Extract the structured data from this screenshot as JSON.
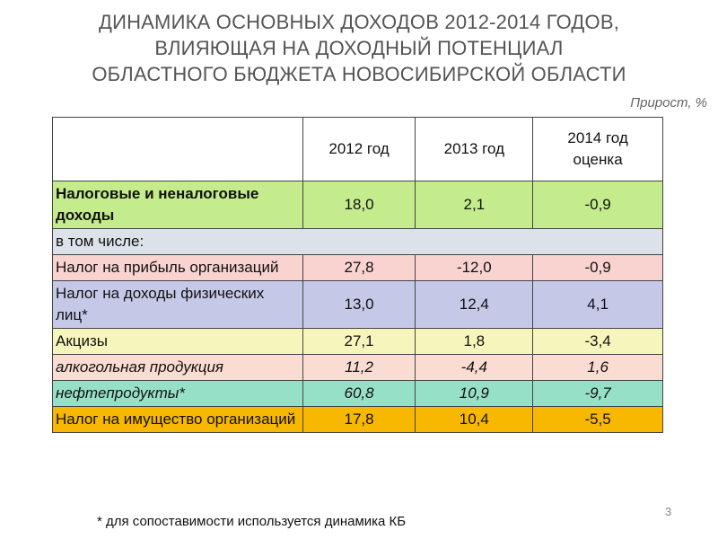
{
  "title": {
    "lines": [
      "ДИНАМИКА ОСНОВНЫХ ДОХОДОВ 2012-2014 ГОДОВ,",
      "ВЛИЯЮЩАЯ НА ДОХОДНЫЙ ПОТЕНЦИАЛ",
      "ОБЛАСТНОГО БЮДЖЕТА НОВОСИБИРСКОЙ ОБЛАСТИ"
    ]
  },
  "unit_note": "Прирост, %",
  "table": {
    "columns": [
      "2012 год",
      "2013 год",
      "2014 год\nоценка"
    ],
    "rows": [
      {
        "label": "Налоговые и неналоговые доходы",
        "values": [
          "18,0",
          "2,1",
          "-0,9"
        ],
        "color": "#c4ec8c",
        "bold_label": true
      },
      {
        "label": "в том числе:",
        "color": "#dce2ea"
      },
      {
        "label": "Налог на прибыль организаций",
        "values": [
          "27,8",
          "-12,0",
          "-0,9"
        ],
        "color": "#f8d3cf"
      },
      {
        "label": "Налог на доходы физических лиц*",
        "values": [
          "13,0",
          "12,4",
          "4,1"
        ],
        "color": "#c6c8e8"
      },
      {
        "label": "Акцизы",
        "values": [
          "27,1",
          "1,8",
          "-3,4"
        ],
        "color": "#f6f6bc"
      },
      {
        "label": "алкогольная продукция",
        "values": [
          "11,2",
          "-4,4",
          "1,6"
        ],
        "color": "#fbdcd2",
        "italic": true
      },
      {
        "label": "нефтепродукты*",
        "values": [
          "60,8",
          "10,9",
          "-9,7"
        ],
        "color": "#97e0c8",
        "italic": true
      },
      {
        "label": "Налог на имущество организаций",
        "values": [
          "17,8",
          "10,4",
          "-5,5"
        ],
        "color": "#f8b800"
      }
    ]
  },
  "footnote": "* для сопоставимости используется динамика КБ",
  "page_number": "3"
}
